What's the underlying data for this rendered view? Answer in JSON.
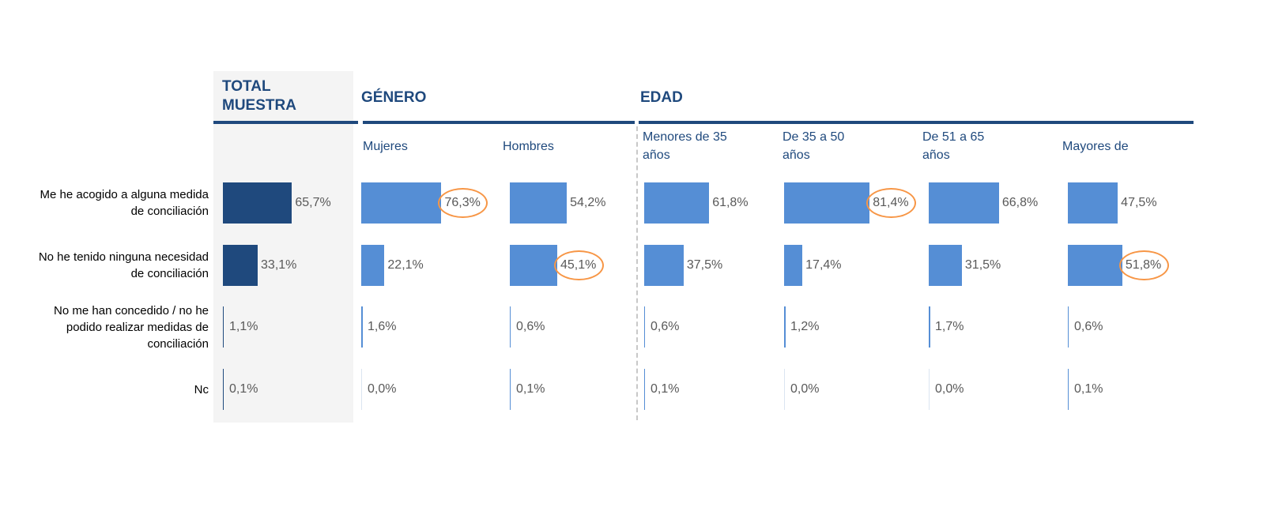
{
  "chart_data": {
    "type": "bar",
    "orientation": "horizontal",
    "xlim": [
      0,
      100
    ],
    "categories": [
      "Me he acogido a alguna medida de conciliación",
      "No he tenido ninguna necesidad de conciliación",
      "No me han concedido / no he podido realizar medidas de conciliación",
      "Nc"
    ],
    "highlight_color": "#f79646",
    "panels": [
      {
        "title": "TOTAL MUESTRA",
        "series": [
          {
            "color": "#1f497d",
            "values": [
              65.7,
              33.1,
              1.1,
              0.1
            ],
            "value_labels": [
              "65,7%",
              "33,1%",
              "1,1%",
              "0,1%"
            ]
          }
        ]
      },
      {
        "title": "GÉNERO",
        "series": [
          {
            "name": "Mujeres",
            "color": "#558ed5",
            "values": [
              76.3,
              22.1,
              1.6,
              0.0
            ],
            "value_labels": [
              "76,3%",
              "22,1%",
              "1,6%",
              "0,0%"
            ],
            "highlight": 0
          },
          {
            "name": "Hombres",
            "color": "#558ed5",
            "values": [
              54.2,
              45.1,
              0.6,
              0.1
            ],
            "value_labels": [
              "54,2%",
              "45,1%",
              "0,6%",
              "0,1%"
            ],
            "highlight": 1
          }
        ]
      },
      {
        "title": "EDAD",
        "series": [
          {
            "name": "Menores de 35 años",
            "color": "#558ed5",
            "values": [
              61.8,
              37.5,
              0.6,
              0.1
            ],
            "value_labels": [
              "61,8%",
              "37,5%",
              "0,6%",
              "0,1%"
            ]
          },
          {
            "name": "De 35 a 50 años",
            "color": "#558ed5",
            "values": [
              81.4,
              17.4,
              1.2,
              0.0
            ],
            "value_labels": [
              "81,4%",
              "17,4%",
              "1,2%",
              "0,0%"
            ],
            "highlight": 0
          },
          {
            "name": "De 51 a 65 años",
            "color": "#558ed5",
            "values": [
              66.8,
              31.5,
              1.7,
              0.0
            ],
            "value_labels": [
              "66,8%",
              "31,5%",
              "1,7%",
              "0,0%"
            ]
          },
          {
            "name": "Mayores de",
            "color": "#558ed5",
            "values": [
              47.5,
              51.8,
              0.6,
              0.1
            ],
            "value_labels": [
              "47,5%",
              "51,8%",
              "0,6%",
              "0,1%"
            ],
            "highlight": 1
          }
        ]
      }
    ]
  }
}
